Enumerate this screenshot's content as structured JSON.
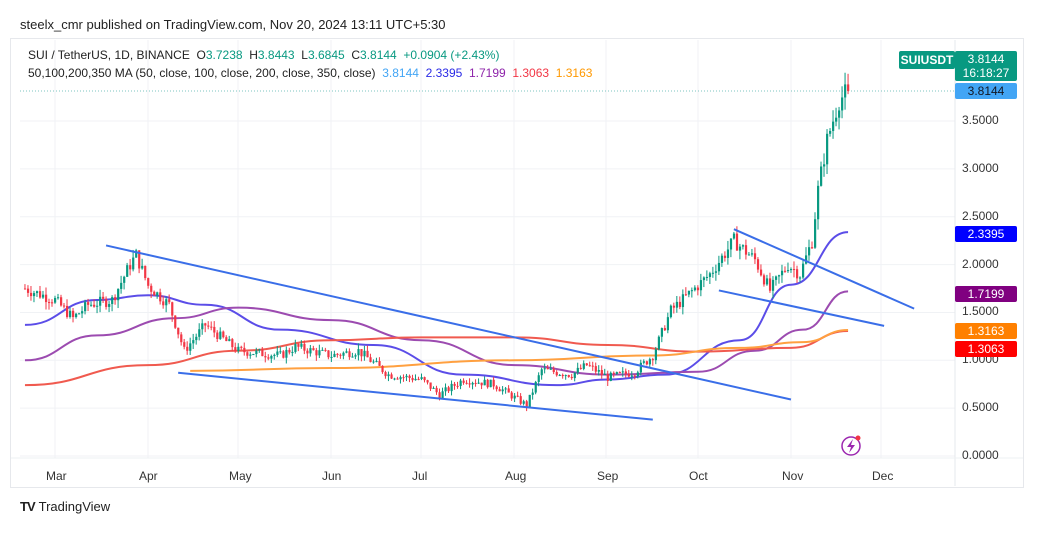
{
  "header": {
    "published": "steelx_cmr published on TradingView.com, Nov 20, 2024 13:11 UTC+5:30"
  },
  "legend": {
    "symbol": "SUI / TetherUS, 1D, BINANCE",
    "o_label": "O",
    "o": "3.7238",
    "h_label": "H",
    "h": "3.8443",
    "l_label": "L",
    "l": "3.6845",
    "c_label": "C",
    "c": "3.8144",
    "change": "+0.0904 (+2.43%)",
    "ma_title": "50,100,200,350 MA (50, close, 100, close, 200, close, 350, close)",
    "ma_values": [
      "3.8144",
      "2.3395",
      "1.7199",
      "1.3063",
      "1.3163"
    ],
    "ma_colors": [
      "#42a5f5",
      "#2a2ae6",
      "#8e24aa",
      "#f23645",
      "#ff9800"
    ]
  },
  "price_scale": {
    "symbol_tag": "SUIUSDT",
    "last_price": "3.8144",
    "countdown": "16:18:27",
    "last_price_line": "3.8144",
    "ticks": [
      "3.5000",
      "3.0000",
      "2.5000",
      "2.0000",
      "1.5000",
      "1.0000",
      "0.5000",
      "0.0000"
    ],
    "labels": [
      {
        "text": "2.3395",
        "color": "#0000ff"
      },
      {
        "text": "1.7199",
        "color": "#800080"
      },
      {
        "text": "1.3163",
        "color": "#ff8000"
      },
      {
        "text": "1.3063",
        "color": "#ff0000"
      }
    ]
  },
  "time_axis": [
    "Mar",
    "Apr",
    "May",
    "Jun",
    "Jul",
    "Aug",
    "Sep",
    "Oct",
    "Nov",
    "Dec"
  ],
  "footer": {
    "brand": "TradingView"
  },
  "colors": {
    "up": "#089981",
    "down": "#f23645",
    "trendline": "#3a6ee8",
    "accent": "#089981"
  },
  "chart_data": {
    "type": "candlestick",
    "year": 2024,
    "ylim": [
      0,
      4.2
    ],
    "price_path": [
      [
        "02-20",
        1.75
      ],
      [
        "03-01",
        1.63
      ],
      [
        "03-07",
        1.44
      ],
      [
        "03-12",
        1.58
      ],
      [
        "03-20",
        1.63
      ],
      [
        "03-26",
        2.0
      ],
      [
        "03-28",
        2.1
      ],
      [
        "04-01",
        1.78
      ],
      [
        "04-08",
        1.58
      ],
      [
        "04-13",
        1.1
      ],
      [
        "04-20",
        1.37
      ],
      [
        "05-01",
        1.1
      ],
      [
        "05-15",
        1.05
      ],
      [
        "05-20",
        1.14
      ],
      [
        "06-01",
        1.05
      ],
      [
        "06-10",
        1.1
      ],
      [
        "06-20",
        0.85
      ],
      [
        "07-01",
        0.8
      ],
      [
        "07-07",
        0.64
      ],
      [
        "07-15",
        0.8
      ],
      [
        "07-25",
        0.75
      ],
      [
        "08-05",
        0.53
      ],
      [
        "08-10",
        0.9
      ],
      [
        "08-20",
        0.85
      ],
      [
        "08-25",
        0.95
      ],
      [
        "09-01",
        0.82
      ],
      [
        "09-10",
        0.88
      ],
      [
        "09-16",
        1.05
      ],
      [
        "09-22",
        1.52
      ],
      [
        "10-01",
        1.78
      ],
      [
        "10-05",
        1.9
      ],
      [
        "10-13",
        2.25
      ],
      [
        "10-20",
        2.05
      ],
      [
        "10-25",
        1.73
      ],
      [
        "10-31",
        2.0
      ],
      [
        "11-04",
        1.9
      ],
      [
        "11-08",
        2.25
      ],
      [
        "11-10",
        2.78
      ],
      [
        "11-13",
        3.3
      ],
      [
        "11-17",
        3.72
      ],
      [
        "11-20",
        3.8144
      ]
    ],
    "moving_averages": [
      {
        "name": "MA50",
        "color": "#5b4de8",
        "points": [
          [
            "02-20",
            1.37
          ],
          [
            "03-15",
            1.63
          ],
          [
            "04-01",
            1.68
          ],
          [
            "04-20",
            1.58
          ],
          [
            "05-15",
            1.32
          ],
          [
            "06-15",
            1.16
          ],
          [
            "07-15",
            0.85
          ],
          [
            "08-15",
            0.74
          ],
          [
            "09-01",
            0.8
          ],
          [
            "09-20",
            0.85
          ],
          [
            "10-15",
            1.21
          ],
          [
            "11-01",
            1.79
          ],
          [
            "11-20",
            2.3395
          ]
        ]
      },
      {
        "name": "MA100",
        "color": "#9c4bb0",
        "points": [
          [
            "02-20",
            1.0
          ],
          [
            "03-15",
            1.26
          ],
          [
            "04-10",
            1.44
          ],
          [
            "05-01",
            1.55
          ],
          [
            "06-01",
            1.42
          ],
          [
            "07-01",
            1.21
          ],
          [
            "08-01",
            0.95
          ],
          [
            "09-01",
            0.85
          ],
          [
            "10-01",
            0.88
          ],
          [
            "10-20",
            1.1
          ],
          [
            "11-05",
            1.32
          ],
          [
            "11-20",
            1.7199
          ]
        ]
      },
      {
        "name": "MA200",
        "color": "#f05a4f",
        "points": [
          [
            "02-20",
            0.74
          ],
          [
            "04-01",
            0.95
          ],
          [
            "05-01",
            1.1
          ],
          [
            "06-01",
            1.21
          ],
          [
            "07-01",
            1.24
          ],
          [
            "08-01",
            1.24
          ],
          [
            "09-01",
            1.16
          ],
          [
            "10-01",
            1.09
          ],
          [
            "11-01",
            1.13
          ],
          [
            "11-20",
            1.3063
          ]
        ]
      },
      {
        "name": "MA350",
        "color": "#ffa040",
        "points": [
          [
            "04-15",
            0.89
          ],
          [
            "06-01",
            0.92
          ],
          [
            "08-01",
            1.0
          ],
          [
            "09-15",
            1.05
          ],
          [
            "10-15",
            1.13
          ],
          [
            "11-05",
            1.19
          ],
          [
            "11-20",
            1.3163
          ]
        ]
      }
    ],
    "trendlines": [
      [
        [
          "03-18",
          2.2
        ],
        [
          "11-01",
          0.59
        ]
      ],
      [
        [
          "04-11",
          0.87
        ],
        [
          "09-16",
          0.38
        ]
      ],
      [
        [
          "10-13",
          2.37
        ],
        [
          "12-12",
          1.54
        ]
      ],
      [
        [
          "10-08",
          1.73
        ],
        [
          "12-02",
          1.36
        ]
      ]
    ]
  }
}
